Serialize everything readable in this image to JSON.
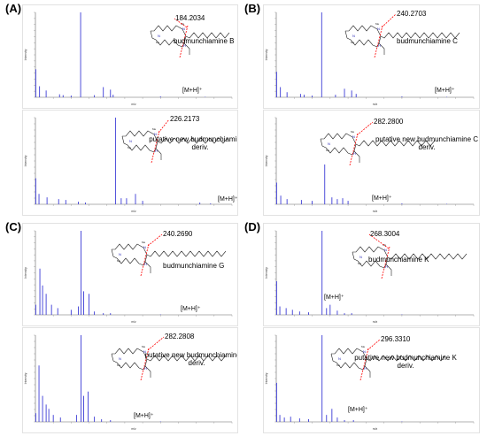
{
  "panel_letters": [
    "(A)",
    "(B)",
    "(C)",
    "(D)"
  ],
  "colors": {
    "peak": "#3b3bd6",
    "struct": "#2a2ab8",
    "frag": "#ff0000"
  },
  "chart_data": [
    {
      "id": "A1",
      "type": "bar",
      "xlabel": "m/z",
      "ylabel": "Intensity",
      "xlim": [
        100,
        1200
      ],
      "ylim": [
        0,
        1
      ],
      "peaks": [
        [
          102,
          0.33
        ],
        [
          123,
          0.13
        ],
        [
          160,
          0.08
        ],
        [
          235,
          0.035
        ],
        [
          255,
          0.025
        ],
        [
          300,
          0.02
        ],
        [
          353,
          1.0
        ],
        [
          430,
          0.025
        ],
        [
          480,
          0.12
        ],
        [
          520,
          0.09
        ],
        [
          535,
          0.03
        ],
        [
          800,
          0.01
        ],
        [
          1050,
          0.005
        ]
      ],
      "frag_mz": "184.2034",
      "name": "budmunchiamine B",
      "mh": "[M+H]⁺"
    },
    {
      "id": "A2",
      "type": "bar",
      "xlabel": "m/z",
      "ylabel": "Intensity",
      "xlim": [
        100,
        1200
      ],
      "ylim": [
        0,
        1
      ],
      "peaks": [
        [
          102,
          0.3
        ],
        [
          120,
          0.12
        ],
        [
          165,
          0.08
        ],
        [
          230,
          0.06
        ],
        [
          270,
          0.05
        ],
        [
          340,
          0.03
        ],
        [
          380,
          0.02
        ],
        [
          548,
          1.0
        ],
        [
          580,
          0.07
        ],
        [
          610,
          0.07
        ],
        [
          660,
          0.12
        ],
        [
          700,
          0.04
        ],
        [
          1020,
          0.02
        ],
        [
          1080,
          0.01
        ]
      ],
      "frag_mz": "226.2173",
      "name": "putative new budmunchiamine B deriv.",
      "mh": "[M+H]⁺"
    },
    {
      "id": "B1",
      "type": "bar",
      "xlabel": "m/z",
      "ylabel": "Intensity",
      "xlim": [
        100,
        1200
      ],
      "ylim": [
        0,
        1
      ],
      "peaks": [
        [
          102,
          0.3
        ],
        [
          123,
          0.12
        ],
        [
          160,
          0.06
        ],
        [
          235,
          0.04
        ],
        [
          255,
          0.03
        ],
        [
          300,
          0.02
        ],
        [
          353,
          1.0
        ],
        [
          430,
          0.03
        ],
        [
          480,
          0.1
        ],
        [
          520,
          0.08
        ],
        [
          545,
          0.04
        ],
        [
          800,
          0.01
        ],
        [
          1050,
          0.005
        ]
      ],
      "frag_mz": "240.2703",
      "name": "budmunchiamine C",
      "mh": "[M+H]⁺"
    },
    {
      "id": "B2",
      "type": "bar",
      "xlabel": "m/z",
      "ylabel": "Intensity",
      "xlim": [
        100,
        1200
      ],
      "ylim": [
        0,
        1
      ],
      "peaks": [
        [
          102,
          0.25
        ],
        [
          125,
          0.1
        ],
        [
          160,
          0.06
        ],
        [
          240,
          0.05
        ],
        [
          300,
          0.04
        ],
        [
          370,
          1.0
        ],
        [
          410,
          0.08
        ],
        [
          440,
          0.06
        ],
        [
          470,
          0.07
        ],
        [
          500,
          0.04
        ],
        [
          800,
          0.01
        ],
        [
          1050,
          0.005
        ]
      ],
      "frag_mz": "282.2800",
      "name": "putative new budmunchiamine C deriv.",
      "mh": "[M+H]⁺"
    },
    {
      "id": "C1",
      "type": "bar",
      "xlabel": "m/z",
      "ylabel": "Intensity",
      "xlim": [
        100,
        1200
      ],
      "ylim": [
        0,
        1
      ],
      "peaks": [
        [
          102,
          0.12
        ],
        [
          125,
          0.55
        ],
        [
          140,
          0.35
        ],
        [
          160,
          0.25
        ],
        [
          190,
          0.12
        ],
        [
          225,
          0.08
        ],
        [
          300,
          0.06
        ],
        [
          340,
          0.1
        ],
        [
          355,
          1.0
        ],
        [
          370,
          0.28
        ],
        [
          400,
          0.25
        ],
        [
          430,
          0.04
        ],
        [
          480,
          0.02
        ],
        [
          520,
          0.02
        ],
        [
          800,
          0.005
        ]
      ],
      "frag_mz": "240.2690",
      "name": "budmunchiamine G",
      "mh": "[M+H]⁺"
    },
    {
      "id": "C2",
      "type": "bar",
      "xlabel": "m/z",
      "ylabel": "Intensity",
      "xlim": [
        100,
        1200
      ],
      "ylim": [
        0,
        1
      ],
      "peaks": [
        [
          102,
          0.1
        ],
        [
          120,
          0.65
        ],
        [
          140,
          0.3
        ],
        [
          160,
          0.2
        ],
        [
          175,
          0.15
        ],
        [
          200,
          0.08
        ],
        [
          240,
          0.05
        ],
        [
          330,
          0.08
        ],
        [
          355,
          1.0
        ],
        [
          370,
          0.3
        ],
        [
          395,
          0.35
        ],
        [
          430,
          0.06
        ],
        [
          470,
          0.03
        ],
        [
          520,
          0.02
        ],
        [
          800,
          0.005
        ]
      ],
      "frag_mz": "282.2808",
      "name": "putative new budmunchiamine G deriv.",
      "mh": "[M+H]⁺"
    },
    {
      "id": "D1",
      "type": "bar",
      "xlabel": "m/z",
      "ylabel": "Intensity",
      "xlim": [
        100,
        1200
      ],
      "ylim": [
        0,
        1
      ],
      "peaks": [
        [
          102,
          0.4
        ],
        [
          120,
          0.1
        ],
        [
          155,
          0.08
        ],
        [
          190,
          0.06
        ],
        [
          230,
          0.04
        ],
        [
          280,
          0.03
        ],
        [
          355,
          1.0
        ],
        [
          380,
          0.08
        ],
        [
          400,
          0.12
        ],
        [
          440,
          0.05
        ],
        [
          480,
          0.02
        ],
        [
          520,
          0.02
        ],
        [
          800,
          0.005
        ]
      ],
      "frag_mz": "268.3004",
      "name": "budmunchiamine K",
      "mh": "[M+H]⁺"
    },
    {
      "id": "D2",
      "type": "bar",
      "xlabel": "m/z",
      "ylabel": "Intensity",
      "xlim": [
        100,
        1200
      ],
      "ylim": [
        0,
        1
      ],
      "peaks": [
        [
          102,
          0.45
        ],
        [
          120,
          0.08
        ],
        [
          145,
          0.05
        ],
        [
          180,
          0.06
        ],
        [
          230,
          0.04
        ],
        [
          280,
          0.03
        ],
        [
          355,
          1.0
        ],
        [
          380,
          0.08
        ],
        [
          410,
          0.15
        ],
        [
          440,
          0.05
        ],
        [
          480,
          0.02
        ],
        [
          530,
          0.02
        ],
        [
          800,
          0.005
        ]
      ],
      "frag_mz": "296.3310",
      "name": "putative new budmunchiamine K deriv.",
      "mh": "[M+H]⁺"
    }
  ]
}
